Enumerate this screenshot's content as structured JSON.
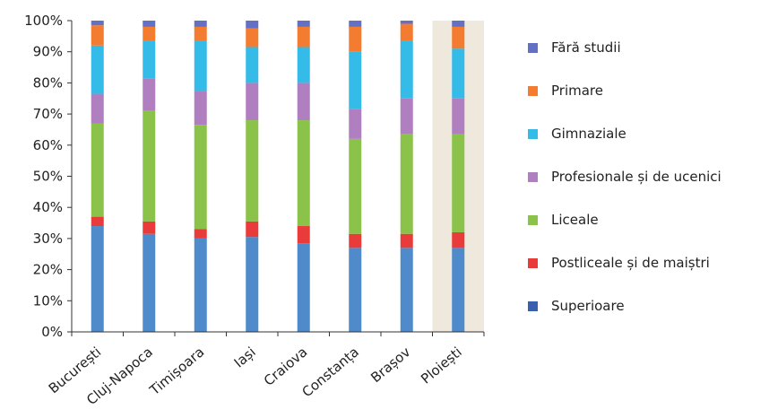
{
  "chart_data": {
    "type": "bar",
    "stacked": true,
    "normalized": true,
    "categories": [
      "București",
      "Cluj-Napoca",
      "Timișoara",
      "Iași",
      "Craiova",
      "Constanța",
      "Brașov",
      "Ploiești"
    ],
    "highlighted_category": "Ploiești",
    "highlight_color": "#efe8dc",
    "ylim": [
      0,
      100
    ],
    "yticks": [
      "0%",
      "10%",
      "20%",
      "30%",
      "40%",
      "50%",
      "60%",
      "70%",
      "80%",
      "90%",
      "100%"
    ],
    "grid": false,
    "legend_position": "right",
    "series": [
      {
        "name": "Superioare",
        "color": "#4f8bcb",
        "legend_color": "#3a5fae",
        "values": [
          34,
          31.5,
          30,
          30.5,
          28.5,
          27,
          27,
          27
        ]
      },
      {
        "name": "Postliceale și de maiștri",
        "color": "#ea3b3b",
        "values": [
          3,
          4,
          3,
          5,
          5.5,
          4.5,
          4.5,
          5
        ]
      },
      {
        "name": "Liceale",
        "color": "#8bc34a",
        "values": [
          30,
          35.5,
          33.5,
          32.5,
          34,
          30.5,
          32,
          31.5
        ]
      },
      {
        "name": "Profesionale și de ucenici",
        "color": "#b07fc0",
        "values": [
          9.5,
          10.5,
          11,
          12,
          12,
          9.5,
          11.5,
          11.5
        ]
      },
      {
        "name": "Gimnaziale",
        "color": "#35bbe8",
        "values": [
          15.5,
          12,
          16,
          11.5,
          11.5,
          18.5,
          18.5,
          16
        ]
      },
      {
        "name": "Primare",
        "color": "#f47c30",
        "values": [
          6.5,
          4.5,
          4.5,
          6,
          6.5,
          8,
          5.5,
          7
        ]
      },
      {
        "name": "Fără studii",
        "color": "#6470c4",
        "values": [
          1.5,
          2,
          2,
          2.5,
          2,
          2,
          1,
          2
        ]
      }
    ],
    "legend_order": [
      "Fără studii",
      "Primare",
      "Gimnaziale",
      "Profesionale și de ucenici",
      "Liceale",
      "Postliceale și de maiștri",
      "Superioare"
    ]
  }
}
